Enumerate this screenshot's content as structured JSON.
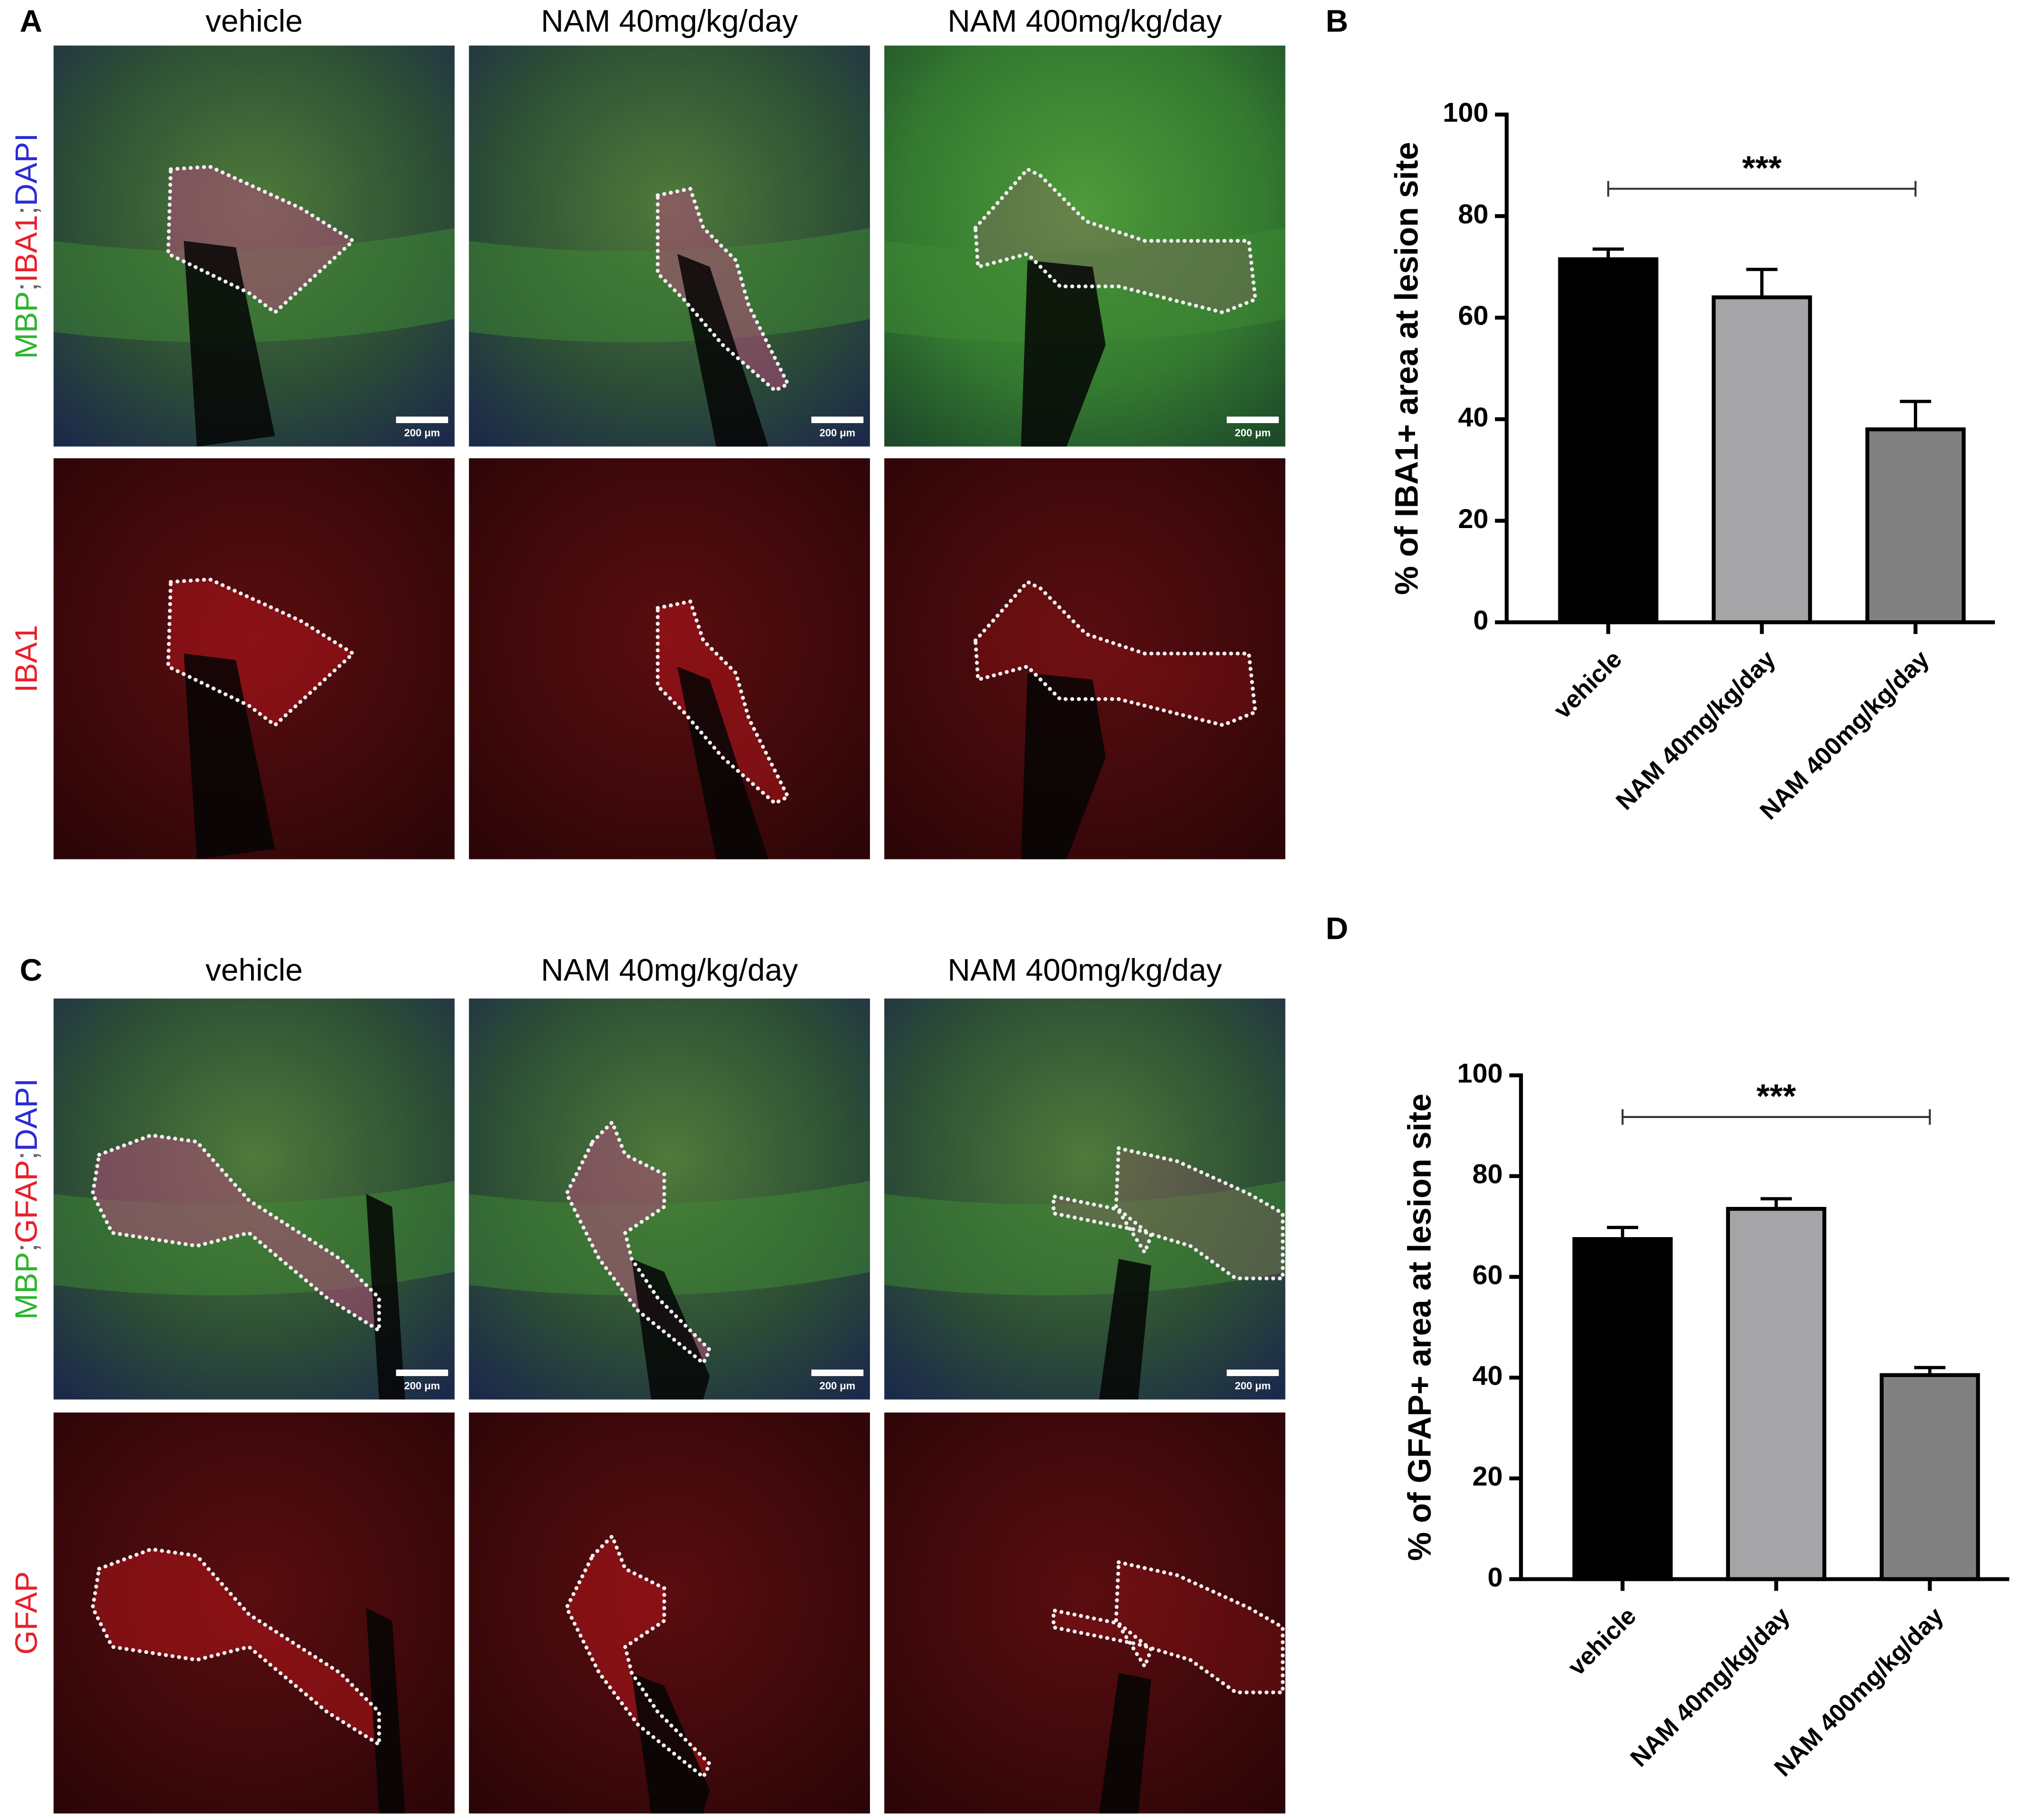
{
  "panel_A": {
    "label": "A",
    "columns": [
      "vehicle",
      "NAM 40mg/kg/day",
      "NAM 400mg/kg/day"
    ],
    "row_labels": [
      [
        {
          "text": "MBP",
          "color": "#2db52d"
        },
        {
          "text": ";",
          "color": "#666666"
        },
        {
          "text": "IBA1",
          "color": "#e8202a"
        },
        {
          "text": ";",
          "color": "#666666"
        },
        {
          "text": "DAPI",
          "color": "#2b2bd6"
        }
      ],
      [
        {
          "text": "IBA1",
          "color": "#e8202a"
        }
      ]
    ],
    "scale_bar": "200 μm"
  },
  "panel_C": {
    "label": "C",
    "columns": [
      "vehicle",
      "NAM 40mg/kg/day",
      "NAM 400mg/kg/day"
    ],
    "row_labels": [
      [
        {
          "text": "MBP",
          "color": "#2db52d"
        },
        {
          "text": ";",
          "color": "#666666"
        },
        {
          "text": "GFAP",
          "color": "#e8202a"
        },
        {
          "text": ";",
          "color": "#666666"
        },
        {
          "text": "DAPI",
          "color": "#2b2bd6"
        }
      ],
      [
        {
          "text": "GFAP",
          "color": "#e8202a"
        }
      ]
    ],
    "scale_bar": "200 μm"
  },
  "chart_data": [
    {
      "type": "bar",
      "panel_label": "B",
      "y_label": "% of IBA1+ area at lesion site",
      "categories": [
        "vehicle",
        "NAM 40mg/kg/day",
        "NAM 400mg/kg/day"
      ],
      "values": [
        71.5,
        64,
        38
      ],
      "errors": [
        2,
        5.5,
        5.5
      ],
      "colors": [
        "#000000",
        "#a5a5a8",
        "#808080"
      ],
      "ylim": [
        0,
        100
      ],
      "yticks": [
        0,
        20,
        40,
        60,
        80,
        100
      ],
      "annotation": "***"
    },
    {
      "type": "bar",
      "panel_label": "D",
      "y_label": "% of GFAP+ area at lesion site",
      "categories": [
        "vehicle",
        "NAM 40mg/kg/day",
        "NAM 400mg/kg/day"
      ],
      "values": [
        67.5,
        73.5,
        40.5
      ],
      "errors": [
        2.3,
        2,
        1.5
      ],
      "colors": [
        "#000000",
        "#a5a5a8",
        "#808080"
      ],
      "ylim": [
        0,
        100
      ],
      "yticks": [
        0,
        20,
        40,
        60,
        80,
        100
      ],
      "annotation": "***"
    }
  ]
}
